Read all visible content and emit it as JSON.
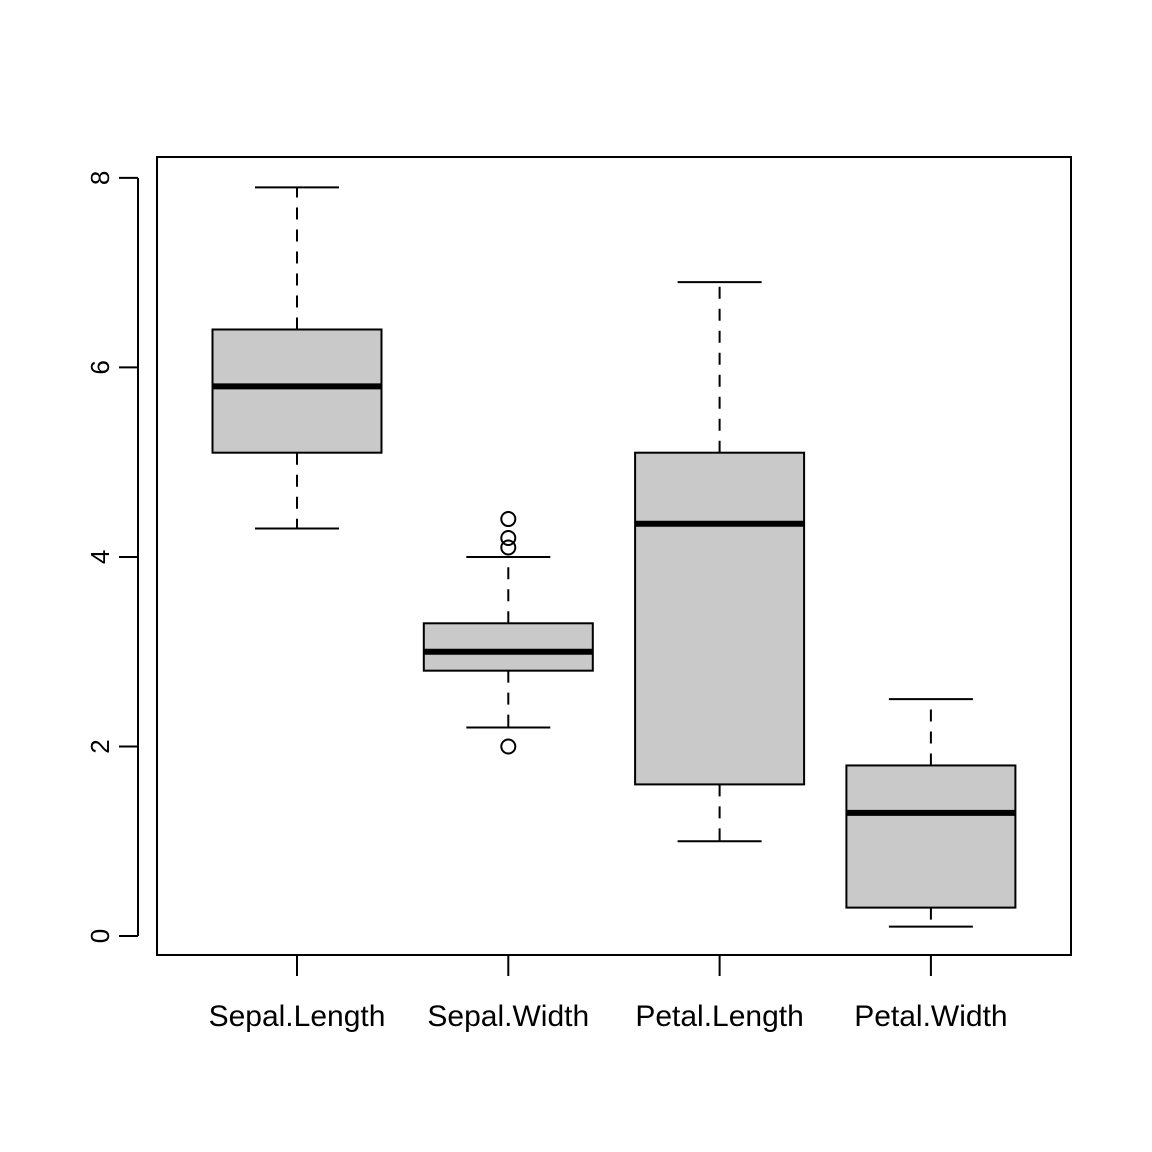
{
  "chart_data": {
    "type": "boxplot",
    "title": "",
    "xlabel": "",
    "ylabel": "",
    "ylim": [
      -0.2,
      8.22
    ],
    "yticks": [
      0,
      2,
      4,
      6,
      8
    ],
    "grid": false,
    "legend": "none",
    "colors": {
      "box_fill": "#c9c9c9",
      "stroke": "#000000"
    },
    "categories": [
      "Sepal.Length",
      "Sepal.Width",
      "Petal.Length",
      "Petal.Width"
    ],
    "boxes": [
      {
        "whisker_low": 4.3,
        "q1": 5.1,
        "median": 5.8,
        "q3": 6.4,
        "whisker_high": 7.9,
        "outliers": []
      },
      {
        "whisker_low": 2.2,
        "q1": 2.8,
        "median": 3.0,
        "q3": 3.3,
        "whisker_high": 4.0,
        "outliers": [
          2.0,
          4.1,
          4.2,
          4.4
        ]
      },
      {
        "whisker_low": 1.0,
        "q1": 1.6,
        "median": 4.35,
        "q3": 5.1,
        "whisker_high": 6.9,
        "outliers": []
      },
      {
        "whisker_low": 0.1,
        "q1": 0.3,
        "median": 1.3,
        "q3": 1.8,
        "whisker_high": 2.5,
        "outliers": []
      }
    ]
  }
}
